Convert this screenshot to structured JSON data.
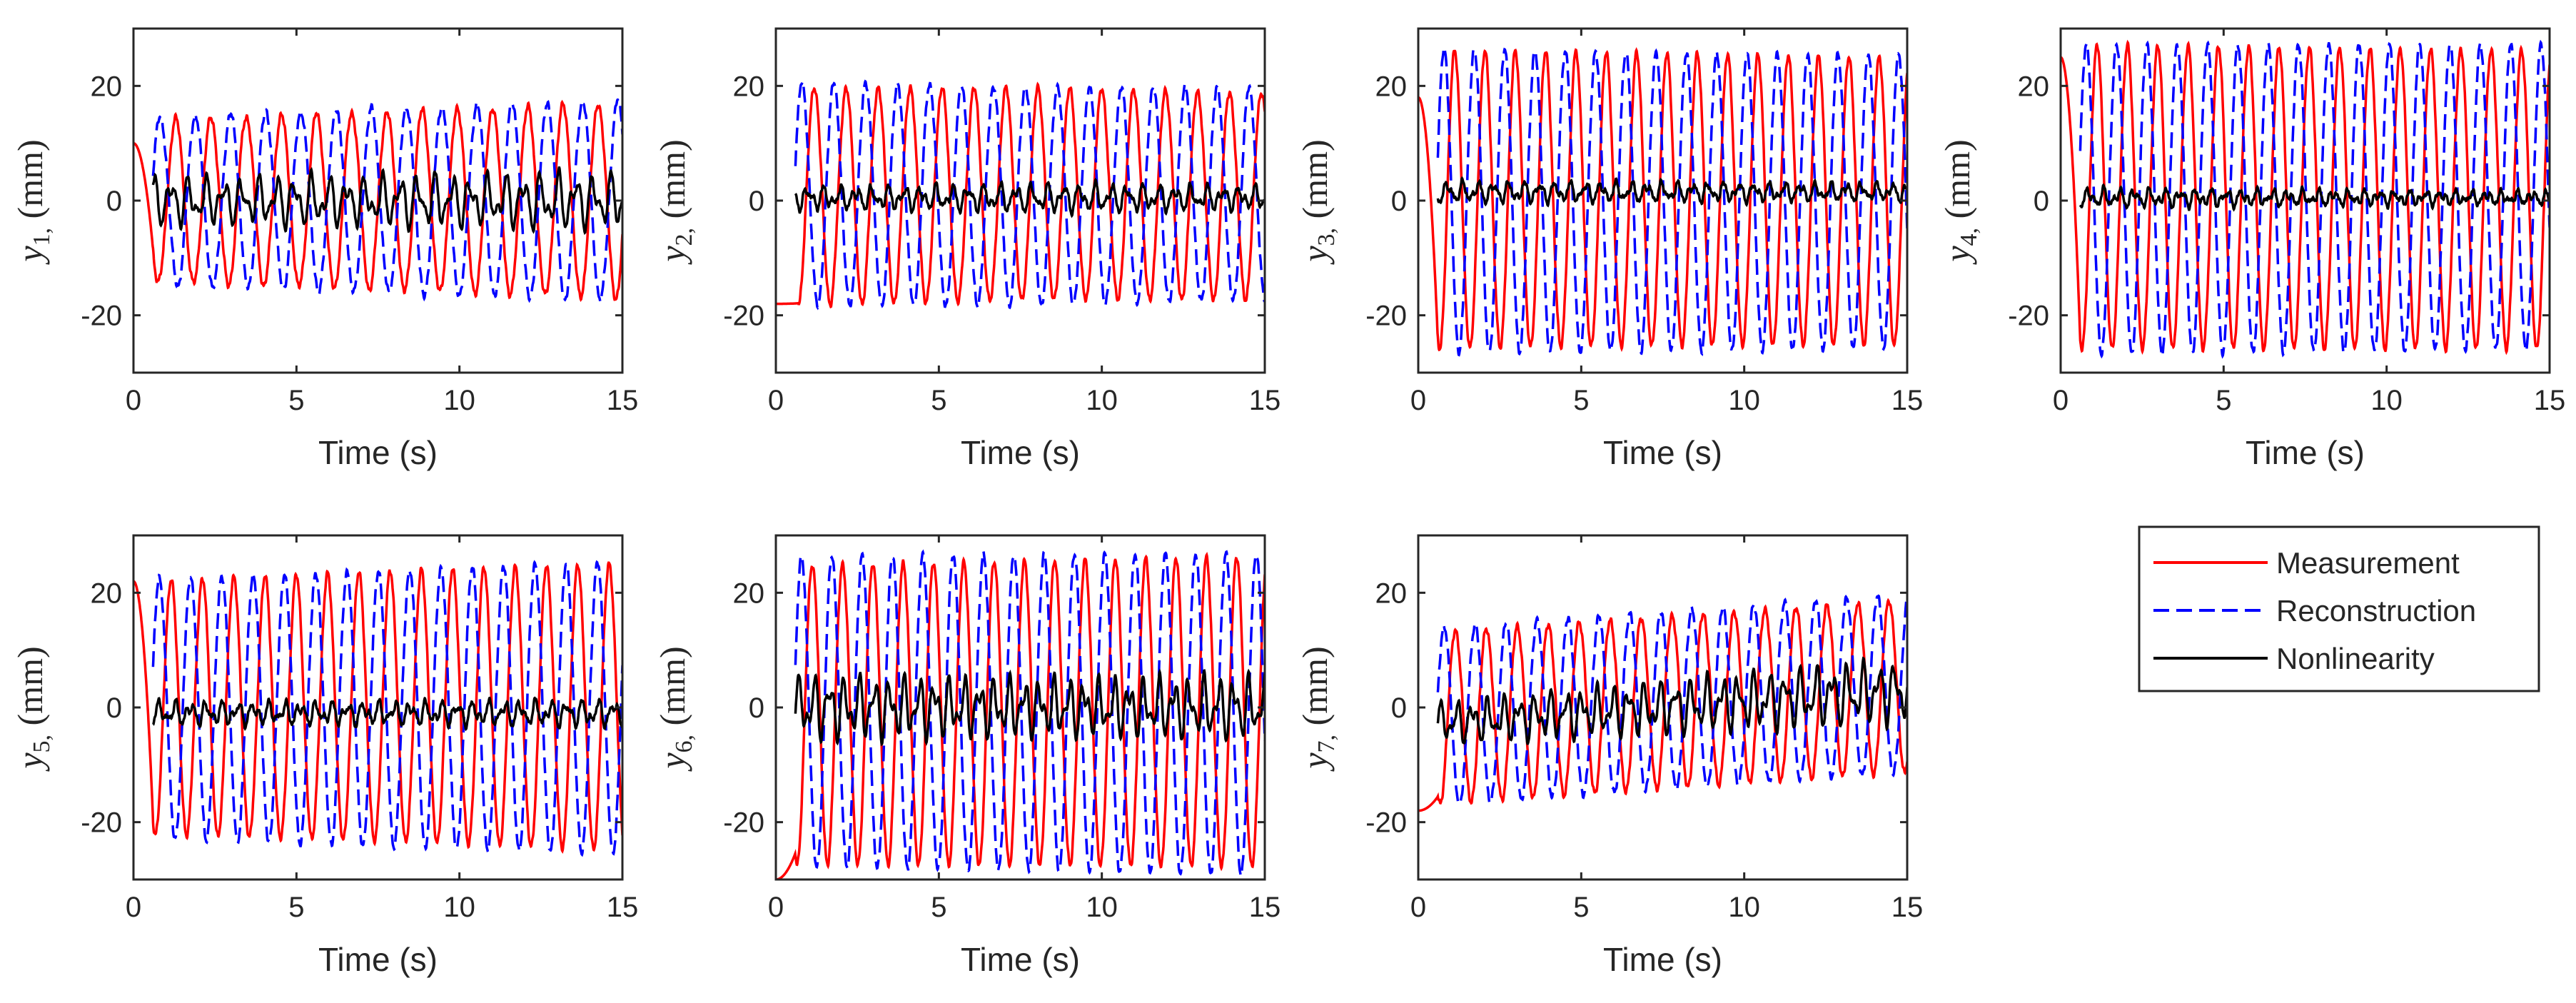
{
  "colors": {
    "measurement": "#ff0000",
    "reconstruction": "#0000ff",
    "nonlinearity": "#000000",
    "axes": "#262626"
  },
  "legend": {
    "location": "right, second row",
    "entries": [
      {
        "key": "measurement",
        "label": "Measurement",
        "style": "solid"
      },
      {
        "key": "reconstruction",
        "label": "Reconstruction",
        "style": "dashed"
      },
      {
        "key": "nonlinearity",
        "label": "Nonlinearity",
        "style": "solid"
      }
    ]
  },
  "chart_data": [
    {
      "type": "line",
      "title": "",
      "ylabel": "y1, (mm)",
      "ylabel_var": "y",
      "ylabel_sub": "1,",
      "ylabel_unit": " (mm)",
      "xlabel": "Time (s)",
      "xlim": [
        0,
        15
      ],
      "ylim": [
        -30,
        30
      ],
      "xticks": [
        0,
        5,
        10,
        15
      ],
      "xticklabels": [
        "0",
        "5",
        "10",
        "15"
      ],
      "yticks": [
        -20,
        0,
        20
      ],
      "yticklabels": [
        "-20",
        "0",
        "20"
      ],
      "series": [
        {
          "name": "Measurement",
          "kind": "measurement",
          "offset": 0,
          "amp": 14,
          "amp_end": 17,
          "period": 1.08,
          "x_start": 0,
          "init": 10,
          "settle": 0.6
        },
        {
          "name": "Reconstruction",
          "kind": "reconstruction",
          "offset": 0,
          "amp": 14.5,
          "amp_end": 17.5,
          "period": 1.08,
          "x_start": 0.6
        },
        {
          "name": "Nonlinearity",
          "kind": "nonlinearity",
          "offset": 0,
          "amp": 4.5,
          "amp_end": 5.5,
          "period": 0.54,
          "x_start": 0.6
        }
      ]
    },
    {
      "type": "line",
      "title": "",
      "ylabel": "y2, (mm)",
      "ylabel_var": "y",
      "ylabel_sub": "2,",
      "ylabel_unit": " (mm)",
      "xlabel": "Time (s)",
      "xlim": [
        0,
        15
      ],
      "ylim": [
        -30,
        30
      ],
      "xticks": [
        0,
        5,
        10,
        15
      ],
      "xticklabels": [
        "0",
        "5",
        "10",
        "15"
      ],
      "yticks": [
        -20,
        0,
        20
      ],
      "yticklabels": [
        "-20",
        "0",
        "20"
      ],
      "series": [
        {
          "name": "Measurement",
          "kind": "measurement",
          "offset": 1,
          "amp": 19,
          "amp_end": 18,
          "period": 0.98,
          "x_start": 0,
          "init": -18,
          "settle": 0.7
        },
        {
          "name": "Reconstruction",
          "kind": "reconstruction",
          "offset": 1,
          "amp": 19.5,
          "amp_end": 18.5,
          "period": 0.98,
          "x_start": 0.6
        },
        {
          "name": "Nonlinearity",
          "kind": "nonlinearity",
          "offset": 0.5,
          "amp": 2.5,
          "amp_end": 2.5,
          "period": 0.49,
          "x_start": 0.6
        }
      ]
    },
    {
      "type": "line",
      "title": "",
      "ylabel": "y3, (mm)",
      "ylabel_var": "y",
      "ylabel_sub": "3,",
      "ylabel_unit": " (mm)",
      "xlabel": "Time (s)",
      "xlim": [
        0,
        15
      ],
      "ylim": [
        -30,
        30
      ],
      "xticks": [
        0,
        5,
        10,
        15
      ],
      "xticklabels": [
        "0",
        "5",
        "10",
        "15"
      ],
      "yticks": [
        -20,
        0,
        20
      ],
      "yticklabels": [
        "-20",
        "0",
        "20"
      ],
      "series": [
        {
          "name": "Measurement",
          "kind": "measurement",
          "offset": 0,
          "amp": 26,
          "amp_end": 25,
          "period": 0.93,
          "x_start": 0,
          "init": 18,
          "settle": 0.6
        },
        {
          "name": "Reconstruction",
          "kind": "reconstruction",
          "offset": 0,
          "amp": 26.5,
          "amp_end": 25.5,
          "period": 0.93,
          "x_start": 0.6
        },
        {
          "name": "Nonlinearity",
          "kind": "nonlinearity",
          "offset": 1.5,
          "amp": 1.8,
          "amp_end": 1.5,
          "period": 0.47,
          "x_start": 0.6
        }
      ]
    },
    {
      "type": "line",
      "title": "",
      "ylabel": "y4, (mm)",
      "ylabel_var": "y",
      "ylabel_sub": "4,",
      "ylabel_unit": " (mm)",
      "xlabel": "Time (s)",
      "xlim": [
        0,
        15
      ],
      "ylim": [
        -30,
        30
      ],
      "xticks": [
        0,
        5,
        10,
        15
      ],
      "xticklabels": [
        "0",
        "5",
        "10",
        "15"
      ],
      "yticks": [
        -20,
        0,
        20
      ],
      "yticklabels": [
        "-20",
        "0",
        "20"
      ],
      "series": [
        {
          "name": "Measurement",
          "kind": "measurement",
          "offset": 0.5,
          "amp": 26.5,
          "amp_end": 26,
          "period": 0.93,
          "x_start": 0,
          "init": 25,
          "settle": 0.6
        },
        {
          "name": "Reconstruction",
          "kind": "reconstruction",
          "offset": 0.5,
          "amp": 27,
          "amp_end": 26.5,
          "period": 0.93,
          "x_start": 0.6
        },
        {
          "name": "Nonlinearity",
          "kind": "nonlinearity",
          "offset": 0.5,
          "amp": 2,
          "amp_end": 1.5,
          "period": 0.47,
          "x_start": 0.6
        }
      ]
    },
    {
      "type": "line",
      "title": "",
      "ylabel": "y5, (mm)",
      "ylabel_var": "y",
      "ylabel_sub": "5,",
      "ylabel_unit": " (mm)",
      "xlabel": "Time (s)",
      "xlim": [
        0,
        15
      ],
      "ylim": [
        -30,
        30
      ],
      "xticks": [
        0,
        5,
        10,
        15
      ],
      "xticklabels": [
        "0",
        "5",
        "10",
        "15"
      ],
      "yticks": [
        -20,
        0,
        20
      ],
      "yticklabels": [
        "-20",
        "0",
        "20"
      ],
      "series": [
        {
          "name": "Measurement",
          "kind": "measurement",
          "offset": 0,
          "amp": 22,
          "amp_end": 25,
          "period": 0.96,
          "x_start": 0,
          "init": 22,
          "settle": 0.6
        },
        {
          "name": "Reconstruction",
          "kind": "reconstruction",
          "offset": 0,
          "amp": 22.5,
          "amp_end": 25.5,
          "period": 0.96,
          "x_start": 0.6
        },
        {
          "name": "Nonlinearity",
          "kind": "nonlinearity",
          "offset": -1,
          "amp": 2.5,
          "amp_end": 2.5,
          "period": 0.48,
          "x_start": 0.6
        }
      ]
    },
    {
      "type": "line",
      "title": "",
      "ylabel": "y6, (mm)",
      "ylabel_var": "y",
      "ylabel_sub": "6,",
      "ylabel_unit": " (mm)",
      "xlabel": "Time (s)",
      "xlim": [
        0,
        15
      ],
      "ylim": [
        -30,
        30
      ],
      "xticks": [
        0,
        5,
        10,
        15
      ],
      "xticklabels": [
        "0",
        "5",
        "10",
        "15"
      ],
      "yticks": [
        -20,
        0,
        20
      ],
      "yticklabels": [
        "-20",
        "0",
        "20"
      ],
      "series": [
        {
          "name": "Measurement",
          "kind": "measurement",
          "offset": -1,
          "amp": 26,
          "amp_end": 27,
          "period": 0.93,
          "x_start": 0,
          "init": -30,
          "settle": 0.6
        },
        {
          "name": "Reconstruction",
          "kind": "reconstruction",
          "offset": -1,
          "amp": 27,
          "amp_end": 28,
          "period": 0.93,
          "x_start": 0.6
        },
        {
          "name": "Nonlinearity",
          "kind": "nonlinearity",
          "offset": 0,
          "amp": 6,
          "amp_end": 6,
          "period": 0.46,
          "x_start": 0.6
        }
      ]
    },
    {
      "type": "line",
      "title": "",
      "ylabel": "y7, (mm)",
      "ylabel_var": "y",
      "ylabel_sub": "7,",
      "ylabel_unit": " (mm)",
      "xlabel": "Time (s)",
      "xlim": [
        0,
        15
      ],
      "ylim": [
        -30,
        30
      ],
      "xticks": [
        0,
        5,
        10,
        15
      ],
      "xticklabels": [
        "0",
        "5",
        "10",
        "15"
      ],
      "yticks": [
        -20,
        0,
        20
      ],
      "yticklabels": [
        "-20",
        "0",
        "20"
      ],
      "series": [
        {
          "name": "Measurement",
          "kind": "measurement",
          "offset": -2,
          "amp": 15,
          "amp_end": 15,
          "period": 0.95,
          "x_start": 0,
          "init": -18,
          "settle": 0.6,
          "trend": 0.4
        },
        {
          "name": "Reconstruction",
          "kind": "reconstruction",
          "offset": -2,
          "amp": 15.5,
          "amp_end": 15.5,
          "period": 0.95,
          "x_start": 0.6,
          "trend": 0.4
        },
        {
          "name": "Nonlinearity",
          "kind": "nonlinearity",
          "offset": -3,
          "amp": 4,
          "amp_end": 6,
          "period": 0.48,
          "x_start": 0.6,
          "trend": 0.4
        }
      ]
    }
  ]
}
